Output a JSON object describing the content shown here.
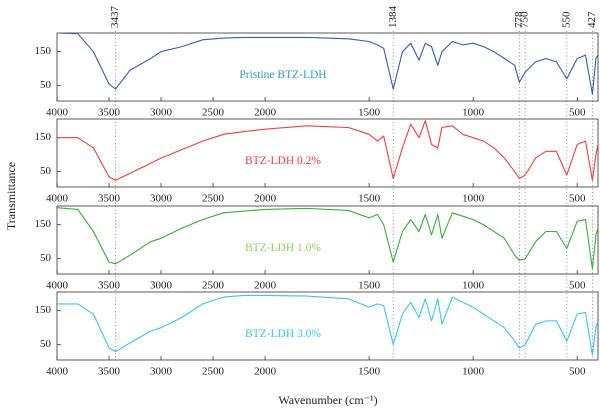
{
  "xlabel": "Wavenumber (cm⁻¹)",
  "ylabel": "Transmittance",
  "peaks": [
    3437,
    1384,
    778,
    750,
    550,
    427
  ],
  "chart_data": [
    {
      "type": "line",
      "name": "Pristine BTZ-LDH",
      "label_color": "#2a9bc8",
      "color": "#3a5ba6",
      "x": [
        4000,
        3800,
        3650,
        3500,
        3437,
        3300,
        3100,
        3000,
        2800,
        2600,
        2400,
        2200,
        2000,
        1800,
        1600,
        1500,
        1460,
        1430,
        1384,
        1340,
        1300,
        1260,
        1230,
        1200,
        1170,
        1150,
        1100,
        1050,
        1000,
        950,
        900,
        850,
        800,
        778,
        750,
        700,
        650,
        600,
        550,
        500,
        460,
        427,
        410,
        400
      ],
      "values": [
        205,
        203,
        150,
        55,
        40,
        95,
        130,
        150,
        165,
        185,
        190,
        192,
        192,
        192,
        188,
        180,
        170,
        160,
        40,
        150,
        175,
        125,
        175,
        165,
        110,
        150,
        180,
        170,
        175,
        165,
        150,
        130,
        110,
        60,
        90,
        120,
        130,
        120,
        70,
        130,
        140,
        25,
        130,
        140
      ],
      "xlim": [
        4000,
        400
      ],
      "x_break": 2000,
      "xticks": [
        4000,
        3500,
        3000,
        2500,
        2000,
        1500,
        1000,
        500
      ],
      "ylim": [
        5,
        205
      ],
      "yticks": [
        50,
        150
      ]
    },
    {
      "type": "line",
      "name": "BTZ-LDH 0.2%",
      "label_color": "#e8403f",
      "color": "#e8403f",
      "x": [
        4000,
        3800,
        3650,
        3500,
        3437,
        3300,
        3100,
        3000,
        2800,
        2600,
        2400,
        2200,
        2000,
        1800,
        1600,
        1500,
        1460,
        1430,
        1384,
        1340,
        1300,
        1260,
        1230,
        1200,
        1170,
        1150,
        1100,
        1050,
        1000,
        950,
        900,
        850,
        800,
        778,
        750,
        700,
        650,
        600,
        550,
        500,
        460,
        427,
        410,
        400
      ],
      "values": [
        150,
        150,
        120,
        35,
        25,
        45,
        75,
        90,
        115,
        140,
        160,
        168,
        175,
        185,
        180,
        160,
        140,
        155,
        30,
        120,
        190,
        150,
        200,
        130,
        120,
        180,
        185,
        160,
        150,
        140,
        120,
        90,
        50,
        30,
        40,
        90,
        110,
        110,
        40,
        130,
        140,
        25,
        100,
        130
      ],
      "xlim": [
        4000,
        400
      ],
      "x_break": 2000,
      "xticks": [
        4000,
        3500,
        3000,
        2500,
        2000,
        1500,
        1000,
        500
      ],
      "ylim": [
        5,
        205
      ],
      "yticks": [
        50,
        150
      ]
    },
    {
      "type": "line",
      "name": "BTZ-LDH 1.0%",
      "label_color": "#8fcf5f",
      "color": "#3aab3a",
      "x": [
        4000,
        3800,
        3650,
        3500,
        3437,
        3300,
        3100,
        3000,
        2800,
        2600,
        2400,
        2200,
        2000,
        1800,
        1600,
        1500,
        1460,
        1430,
        1384,
        1340,
        1300,
        1260,
        1230,
        1200,
        1170,
        1150,
        1100,
        1050,
        1000,
        950,
        900,
        850,
        800,
        778,
        750,
        700,
        650,
        600,
        550,
        500,
        460,
        427,
        410,
        400
      ],
      "values": [
        200,
        195,
        130,
        40,
        35,
        60,
        100,
        110,
        140,
        165,
        185,
        190,
        195,
        198,
        192,
        170,
        180,
        150,
        40,
        130,
        165,
        130,
        180,
        120,
        180,
        110,
        185,
        175,
        165,
        150,
        130,
        110,
        60,
        45,
        50,
        100,
        130,
        130,
        80,
        160,
        165,
        20,
        120,
        140
      ],
      "xlim": [
        4000,
        400
      ],
      "x_break": 2000,
      "xticks": [
        4000,
        3500,
        3000,
        2500,
        2000,
        1500,
        1000,
        500
      ],
      "ylim": [
        5,
        205
      ],
      "yticks": [
        50,
        150
      ]
    },
    {
      "type": "line",
      "name": "BTZ-LDH 3.0%",
      "label_color": "#3ac4e8",
      "color": "#3ac4e8",
      "x": [
        4000,
        3800,
        3650,
        3500,
        3437,
        3300,
        3100,
        3000,
        2800,
        2600,
        2400,
        2200,
        2000,
        1800,
        1600,
        1500,
        1460,
        1430,
        1384,
        1340,
        1300,
        1260,
        1230,
        1200,
        1170,
        1150,
        1100,
        1050,
        1000,
        950,
        900,
        850,
        800,
        778,
        750,
        700,
        650,
        600,
        550,
        500,
        460,
        427,
        410,
        400
      ],
      "values": [
        170,
        170,
        140,
        40,
        30,
        55,
        90,
        100,
        130,
        170,
        190,
        195,
        195,
        193,
        185,
        160,
        170,
        165,
        50,
        140,
        175,
        130,
        185,
        120,
        185,
        110,
        190,
        175,
        160,
        140,
        120,
        100,
        60,
        40,
        50,
        110,
        120,
        120,
        60,
        140,
        145,
        20,
        100,
        120
      ],
      "xlim": [
        4000,
        400
      ],
      "x_break": 2000,
      "xticks": [
        4000,
        3500,
        3000,
        2500,
        2000,
        1500,
        1000,
        500
      ],
      "ylim": [
        5,
        205
      ],
      "yticks": [
        50,
        150
      ]
    }
  ]
}
